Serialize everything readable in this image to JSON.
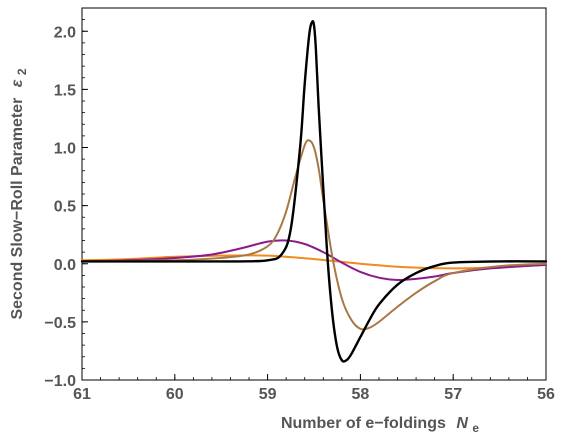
{
  "chart_data": {
    "type": "line",
    "xlabel": "Number of e−foldings",
    "xlabel_symbol": "N",
    "xlabel_sub": "e",
    "ylabel": "Second Slow−Roll Parameter",
    "ylabel_symbol": "ε",
    "ylabel_sub": "2",
    "xlim": [
      61,
      56
    ],
    "ylim": [
      -1.0,
      2.2
    ],
    "x_reversed": true,
    "x_ticks": [
      61,
      60,
      59,
      58,
      57,
      56
    ],
    "x_tick_labels": [
      "61",
      "60",
      "59",
      "58",
      "57",
      "56"
    ],
    "y_ticks": [
      -1.0,
      -0.5,
      0.0,
      0.5,
      1.0,
      1.5,
      2.0
    ],
    "y_tick_labels": [
      "−1.0",
      "−0.5",
      "0.0",
      "0.5",
      "1.0",
      "1.5",
      "2.0"
    ],
    "grid": false,
    "series": [
      {
        "color": "#f28a1e",
        "x": [
          61.0,
          60.5,
          60.0,
          59.5,
          59.0,
          58.5,
          58.0,
          57.5,
          57.0,
          56.5,
          56.0
        ],
        "y": [
          0.03,
          0.04,
          0.06,
          0.07,
          0.07,
          0.04,
          0.0,
          -0.03,
          -0.04,
          -0.03,
          -0.01
        ]
      },
      {
        "color": "#8b1a8b",
        "x": [
          61.0,
          60.5,
          60.0,
          59.6,
          59.3,
          59.0,
          58.8,
          58.6,
          58.4,
          58.2,
          58.0,
          57.8,
          57.6,
          57.4,
          57.2,
          57.0,
          56.6,
          56.0
        ],
        "y": [
          0.02,
          0.03,
          0.05,
          0.08,
          0.13,
          0.19,
          0.2,
          0.17,
          0.1,
          0.01,
          -0.07,
          -0.12,
          -0.14,
          -0.13,
          -0.11,
          -0.08,
          -0.04,
          -0.01
        ]
      },
      {
        "color": "#a87845",
        "x": [
          61.0,
          60.0,
          59.5,
          59.2,
          59.0,
          58.9,
          58.8,
          58.7,
          58.6,
          58.55,
          58.5,
          58.45,
          58.4,
          58.3,
          58.2,
          58.1,
          58.0,
          57.9,
          57.8,
          57.6,
          57.4,
          57.2,
          57.0,
          56.5,
          56.0
        ],
        "y": [
          0.02,
          0.03,
          0.05,
          0.08,
          0.15,
          0.25,
          0.45,
          0.75,
          1.02,
          1.06,
          1.0,
          0.82,
          0.55,
          0.05,
          -0.3,
          -0.48,
          -0.56,
          -0.55,
          -0.5,
          -0.37,
          -0.25,
          -0.15,
          -0.08,
          -0.02,
          0.0
        ]
      },
      {
        "color": "#000000",
        "x": [
          61.0,
          60.0,
          59.3,
          59.0,
          58.85,
          58.75,
          58.65,
          58.6,
          58.55,
          58.52,
          58.5,
          58.48,
          58.45,
          58.4,
          58.35,
          58.3,
          58.25,
          58.2,
          58.15,
          58.1,
          58.0,
          57.9,
          57.8,
          57.6,
          57.4,
          57.2,
          57.0,
          56.5,
          56.0
        ],
        "y": [
          0.02,
          0.02,
          0.02,
          0.03,
          0.08,
          0.3,
          1.0,
          1.55,
          1.98,
          2.08,
          2.05,
          1.85,
          1.35,
          0.65,
          0.0,
          -0.45,
          -0.72,
          -0.83,
          -0.83,
          -0.78,
          -0.63,
          -0.48,
          -0.35,
          -0.18,
          -0.08,
          -0.02,
          0.01,
          0.02,
          0.02
        ]
      }
    ]
  }
}
